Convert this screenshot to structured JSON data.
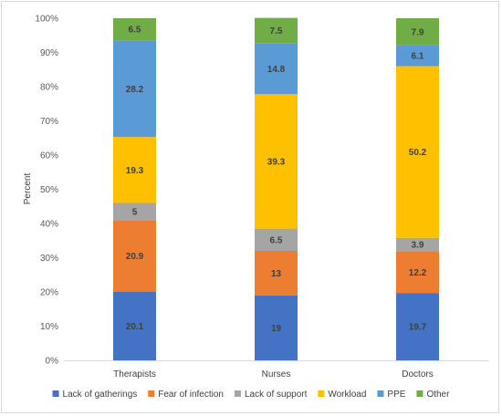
{
  "chart_data": {
    "type": "bar",
    "stacked": true,
    "categories": [
      "Therapists",
      "Nurses",
      "Doctors"
    ],
    "series": [
      {
        "name": "Lack of gatherings",
        "color": "#4472c4",
        "values": [
          20.1,
          19,
          19.7
        ]
      },
      {
        "name": "Fear of infection",
        "color": "#ed7d31",
        "values": [
          20.9,
          13,
          12.2
        ]
      },
      {
        "name": "Lack of support",
        "color": "#a5a5a5",
        "values": [
          5,
          6.5,
          3.9
        ]
      },
      {
        "name": "Workload",
        "color": "#ffc000",
        "values": [
          19.3,
          39.3,
          50.2
        ]
      },
      {
        "name": "PPE",
        "color": "#5b9bd5",
        "values": [
          28.2,
          14.8,
          6.1
        ]
      },
      {
        "name": "Other",
        "color": "#70ad47",
        "values": [
          6.5,
          7.5,
          7.9
        ]
      }
    ],
    "ylabel": "Percent",
    "ylim": [
      0,
      100
    ],
    "yticks": [
      "0%",
      "10%",
      "20%",
      "30%",
      "40%",
      "50%",
      "60%",
      "70%",
      "80%",
      "90%",
      "100%"
    ],
    "grid": false,
    "legend": "bottom"
  }
}
